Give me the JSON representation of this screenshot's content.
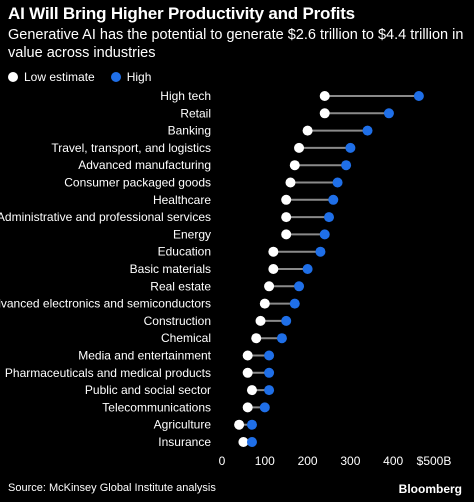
{
  "header": {
    "title": "AI Will Bring Higher Productivity and Profits",
    "subtitle": "Generative AI has the potential to generate $2.6 trillion to $4.4 trillion in value across industries"
  },
  "legend": {
    "low_label": "Low estimate",
    "high_label": "High"
  },
  "footer": {
    "source": "Source: McKinsey Global Institute analysis",
    "brand": "Bloomberg"
  },
  "colors": {
    "background": "#000000",
    "low": "#ffffff",
    "high": "#1f6fe8",
    "connector": "#8a8a8a",
    "text": "#ffffff"
  },
  "chart_data": {
    "type": "dot-range",
    "x_unit_label": "$500B",
    "xlim": [
      0,
      500
    ],
    "xticks": [
      "0",
      "100",
      "200",
      "300",
      "400",
      "$500B"
    ],
    "grid": false,
    "legend_position": "top-left",
    "categories": [
      "High tech",
      "Retail",
      "Banking",
      "Travel, transport, and logistics",
      "Advanced manufacturing",
      "Consumer packaged goods",
      "Healthcare",
      "Administrative and professional services",
      "Energy",
      "Education",
      "Basic materials",
      "Real estate",
      "Advanced electronics and semiconductors",
      "Construction",
      "Chemical",
      "Media and entertainment",
      "Pharmaceuticals and medical products",
      "Public and social sector",
      "Telecommunications",
      "Agriculture",
      "Insurance"
    ],
    "series": [
      {
        "name": "Low estimate",
        "values": [
          240,
          240,
          200,
          180,
          170,
          160,
          150,
          150,
          150,
          120,
          120,
          110,
          100,
          90,
          80,
          60,
          60,
          70,
          60,
          40,
          50
        ]
      },
      {
        "name": "High",
        "values": [
          460,
          390,
          340,
          300,
          290,
          270,
          260,
          250,
          240,
          230,
          200,
          180,
          170,
          150,
          140,
          110,
          110,
          110,
          100,
          70,
          70
        ]
      }
    ]
  }
}
